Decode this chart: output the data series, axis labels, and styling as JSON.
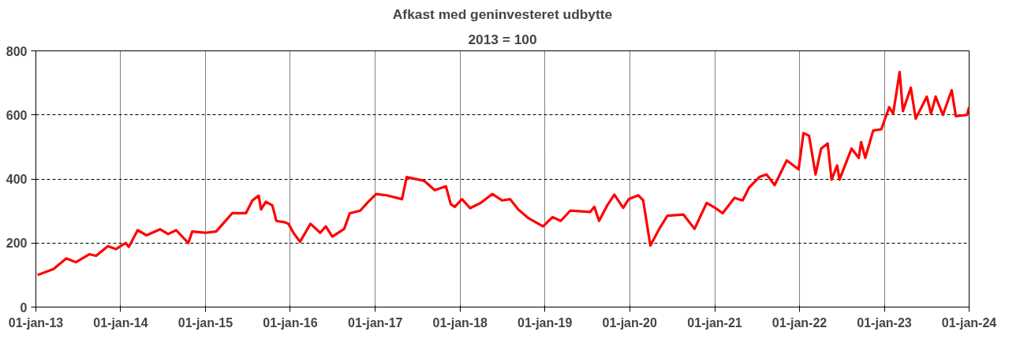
{
  "chart_data": {
    "type": "line",
    "title": "Afkast med geninvesteret udbytte",
    "subtitle": "2013 = 100",
    "x": [
      "2013-01-08",
      "2013-03-18",
      "2013-05-12",
      "2013-06-22",
      "2013-08-20",
      "2013-09-17",
      "2013-11-07",
      "2013-12-12",
      "2014-01-22",
      "2014-02-05",
      "2014-03-15",
      "2014-04-22",
      "2014-06-20",
      "2014-07-24",
      "2014-08-28",
      "2014-10-19",
      "2014-11-05",
      "2015-01-02",
      "2015-02-16",
      "2015-03-23",
      "2015-04-26",
      "2015-06-24",
      "2015-07-22",
      "2015-08-18",
      "2015-08-28",
      "2015-09-18",
      "2015-10-16",
      "2015-11-02",
      "2015-12-07",
      "2015-12-24",
      "2016-01-16",
      "2016-02-12",
      "2016-03-28",
      "2016-05-09",
      "2016-06-02",
      "2016-06-30",
      "2016-08-20",
      "2016-09-13",
      "2016-10-28",
      "2016-12-02",
      "2017-01-05",
      "2017-02-19",
      "2017-04-26",
      "2017-05-16",
      "2017-07-31",
      "2017-09-14",
      "2017-11-01",
      "2017-11-22",
      "2017-12-09",
      "2018-01-09",
      "2018-02-13",
      "2018-03-30",
      "2018-05-20",
      "2018-07-01",
      "2018-08-04",
      "2018-09-08",
      "2018-10-23",
      "2018-12-24",
      "2019-02-03",
      "2019-03-10",
      "2019-04-20",
      "2019-07-15",
      "2019-08-02",
      "2019-08-22",
      "2019-09-26",
      "2019-10-27",
      "2019-12-04",
      "2019-12-28",
      "2020-02-07",
      "2020-02-28",
      "2020-03-30",
      "2020-05-07",
      "2020-06-11",
      "2020-08-19",
      "2020-10-06",
      "2020-11-27",
      "2021-01-04",
      "2021-02-04",
      "2021-03-27",
      "2021-05-01",
      "2021-05-29",
      "2021-07-12",
      "2021-08-12",
      "2021-09-16",
      "2021-11-07",
      "2021-12-28",
      "2022-01-18",
      "2022-02-11",
      "2022-03-11",
      "2022-04-04",
      "2022-05-02",
      "2022-05-19",
      "2022-06-12",
      "2022-06-22",
      "2022-08-13",
      "2022-09-13",
      "2022-09-23",
      "2022-10-11",
      "2022-11-14",
      "2022-12-19",
      "2023-01-22",
      "2023-02-08",
      "2023-03-08",
      "2023-03-22",
      "2023-04-25",
      "2023-05-16",
      "2023-07-03",
      "2023-07-21",
      "2023-08-10",
      "2023-09-10",
      "2023-10-18",
      "2023-11-05",
      "2023-12-23",
      "2024-01-01"
    ],
    "series": [
      {
        "color": "#ff0000",
        "values": [
          100,
          119,
          152,
          140,
          165,
          160,
          190,
          181,
          200,
          188,
          240,
          224,
          243,
          228,
          240,
          200,
          236,
          232,
          236,
          265,
          293,
          293,
          333,
          348,
          305,
          329,
          317,
          269,
          265,
          260,
          230,
          204,
          260,
          232,
          252,
          220,
          244,
          293,
          301,
          329,
          353,
          349,
          337,
          406,
          394,
          365,
          377,
          321,
          313,
          337,
          309,
          325,
          353,
          333,
          337,
          305,
          277,
          252,
          281,
          269,
          301,
          297,
          313,
          269,
          317,
          351,
          310,
          337,
          349,
          333,
          192,
          244,
          285,
          289,
          244,
          325,
          309,
          293,
          341,
          333,
          373,
          406,
          414,
          381,
          458,
          430,
          543,
          535,
          414,
          495,
          511,
          398,
          442,
          398,
          495,
          466,
          515,
          466,
          551,
          555,
          624,
          604,
          734,
          612,
          685,
          588,
          657,
          604,
          657,
          600,
          677,
          596,
          600,
          624
        ]
      }
    ],
    "xlim": [
      "2013-01-01",
      "2024-01-01"
    ],
    "xticks": [
      {
        "value": "2013-01-01",
        "label": "01-jan-13"
      },
      {
        "value": "2014-01-01",
        "label": "01-jan-14"
      },
      {
        "value": "2015-01-01",
        "label": "01-jan-15"
      },
      {
        "value": "2016-01-01",
        "label": "01-jan-16"
      },
      {
        "value": "2017-01-01",
        "label": "01-jan-17"
      },
      {
        "value": "2018-01-01",
        "label": "01-jan-18"
      },
      {
        "value": "2019-01-01",
        "label": "01-jan-19"
      },
      {
        "value": "2020-01-01",
        "label": "01-jan-20"
      },
      {
        "value": "2021-01-01",
        "label": "01-jan-21"
      },
      {
        "value": "2022-01-01",
        "label": "01-jan-22"
      },
      {
        "value": "2023-01-01",
        "label": "01-jan-23"
      },
      {
        "value": "2024-01-01",
        "label": "01-jan-24"
      }
    ],
    "ylim": [
      0,
      800
    ],
    "yticks": [
      0,
      200,
      400,
      600,
      800
    ],
    "grid": true
  }
}
